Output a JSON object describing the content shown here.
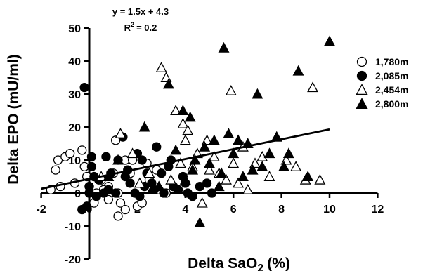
{
  "chart_data": {
    "type": "scatter",
    "equation": "y = 1.5x + 4.3",
    "r2_label": "R",
    "r2_sup": "2",
    "r2_value": "= 0.2",
    "xlabel_main": "Delta SaO",
    "xlabel_sub": "2",
    "xlabel_unit": "(%)",
    "ylabel": "Delta EPO (mU/ml)",
    "x_ticks": [
      "-2",
      "0",
      "2",
      "4",
      "6",
      "8",
      "10",
      "12"
    ],
    "y_ticks": [
      "50",
      "40",
      "30",
      "20",
      "10",
      "0",
      "-10",
      "-20"
    ],
    "xlim": [
      -2,
      12
    ],
    "ylim": [
      -20,
      50
    ],
    "grid": false,
    "legend_position": "right",
    "regression": {
      "slope": 1.5,
      "intercept": 4.3,
      "x_range": [
        -2,
        10
      ]
    },
    "series": [
      {
        "name": "1,780m",
        "marker": "circle-open",
        "points": [
          [
            -1.4,
            7
          ],
          [
            -1.3,
            10
          ],
          [
            -1,
            11
          ],
          [
            -0.8,
            12
          ],
          [
            -0.6,
            3
          ],
          [
            -0.3,
            13
          ],
          [
            -0.2,
            8
          ],
          [
            -0.1,
            5
          ],
          [
            0,
            2
          ],
          [
            0.2,
            -3
          ],
          [
            0.3,
            0
          ],
          [
            0.5,
            4
          ],
          [
            0.8,
            2
          ],
          [
            1,
            6
          ],
          [
            1.1,
            16
          ],
          [
            1.3,
            -3
          ],
          [
            1.5,
            -5
          ],
          [
            1.7,
            6
          ],
          [
            1.5,
            10
          ],
          [
            1.8,
            10
          ],
          [
            2,
            -4
          ],
          [
            2.2,
            -3
          ],
          [
            2.4,
            9
          ],
          [
            2.8,
            7
          ],
          [
            0.6,
            1
          ],
          [
            1.2,
            0
          ],
          [
            2.5,
            4
          ],
          [
            2.9,
            1
          ],
          [
            3.2,
            0
          ],
          [
            3.5,
            2
          ],
          [
            0.8,
            -2
          ],
          [
            1.2,
            -7
          ],
          [
            -1.6,
            1
          ],
          [
            -1.2,
            2
          ]
        ]
      },
      {
        "name": "2,085m",
        "marker": "circle-filled",
        "points": [
          [
            -0.2,
            32
          ],
          [
            -0.3,
            -5
          ],
          [
            -0.1,
            -4
          ],
          [
            0,
            2
          ],
          [
            0,
            0
          ],
          [
            0.1,
            8
          ],
          [
            0.1,
            11
          ],
          [
            0.2,
            5
          ],
          [
            0.3,
            -1
          ],
          [
            0.6,
            0
          ],
          [
            0.8,
            1
          ],
          [
            0.9,
            6
          ],
          [
            1.1,
            0
          ],
          [
            1.2,
            10
          ],
          [
            1.4,
            17
          ],
          [
            1.5,
            5
          ],
          [
            1.7,
            3
          ],
          [
            1.9,
            0
          ],
          [
            2,
            12
          ],
          [
            2.2,
            10
          ],
          [
            2.4,
            6
          ],
          [
            2.6,
            3
          ],
          [
            2.8,
            14
          ],
          [
            3,
            6
          ],
          [
            3.1,
            0
          ],
          [
            3.3,
            8
          ],
          [
            3.5,
            2
          ],
          [
            3.7,
            1
          ],
          [
            3.9,
            5
          ],
          [
            4.1,
            0
          ],
          [
            4.3,
            -1
          ],
          [
            4.6,
            2
          ],
          [
            4.9,
            3
          ],
          [
            5.1,
            0
          ],
          [
            0.4,
            4
          ],
          [
            0.7,
            11
          ],
          [
            1.6,
            7
          ],
          [
            2.1,
            -1
          ],
          [
            2.3,
            2
          ],
          [
            2.7,
            1
          ],
          [
            3.4,
            10
          ],
          [
            4,
            3
          ]
        ]
      },
      {
        "name": "2,454m",
        "marker": "triangle-open",
        "points": [
          [
            0.5,
            5
          ],
          [
            1.3,
            18
          ],
          [
            1.8,
            12
          ],
          [
            2.1,
            3
          ],
          [
            2.5,
            6
          ],
          [
            3,
            38
          ],
          [
            3.2,
            35
          ],
          [
            3.4,
            4
          ],
          [
            3.6,
            25
          ],
          [
            3.8,
            9
          ],
          [
            3.9,
            21
          ],
          [
            4.1,
            19
          ],
          [
            4.3,
            8
          ],
          [
            4.5,
            12
          ],
          [
            4.7,
            -3
          ],
          [
            4.9,
            16
          ],
          [
            5.2,
            11
          ],
          [
            5.4,
            6
          ],
          [
            5.7,
            4
          ],
          [
            5.9,
            31
          ],
          [
            6,
            9
          ],
          [
            6.2,
            3
          ],
          [
            6.4,
            14
          ],
          [
            6.6,
            1
          ],
          [
            6.9,
            9
          ],
          [
            7.2,
            11
          ],
          [
            7.5,
            5
          ],
          [
            7.8,
            17
          ],
          [
            8.2,
            10
          ],
          [
            8.6,
            8
          ],
          [
            9,
            4
          ],
          [
            9.3,
            32
          ],
          [
            9.6,
            4
          ],
          [
            4,
            16
          ],
          [
            5,
            7
          ]
        ]
      },
      {
        "name": "2,800m",
        "marker": "triangle-filled",
        "points": [
          [
            0.8,
            5
          ],
          [
            1.2,
            10
          ],
          [
            2.3,
            20
          ],
          [
            2.6,
            1
          ],
          [
            2.9,
            2
          ],
          [
            3.3,
            33
          ],
          [
            3.6,
            13
          ],
          [
            3.9,
            25
          ],
          [
            4,
            4
          ],
          [
            4.2,
            23
          ],
          [
            4.4,
            10
          ],
          [
            4.6,
            -9
          ],
          [
            4.8,
            14
          ],
          [
            5,
            9
          ],
          [
            5.2,
            16
          ],
          [
            5.4,
            2
          ],
          [
            5.6,
            44
          ],
          [
            5.8,
            18
          ],
          [
            6,
            12
          ],
          [
            6.2,
            16
          ],
          [
            6.4,
            5
          ],
          [
            6.6,
            15
          ],
          [
            6.8,
            7
          ],
          [
            7,
            30
          ],
          [
            7.2,
            8
          ],
          [
            7.5,
            12
          ],
          [
            7.8,
            17
          ],
          [
            8.1,
            8
          ],
          [
            8.3,
            12
          ],
          [
            8.7,
            37
          ],
          [
            9.1,
            5
          ],
          [
            10,
            46
          ],
          [
            4.3,
            7
          ],
          [
            5.5,
            6
          ]
        ]
      }
    ]
  }
}
